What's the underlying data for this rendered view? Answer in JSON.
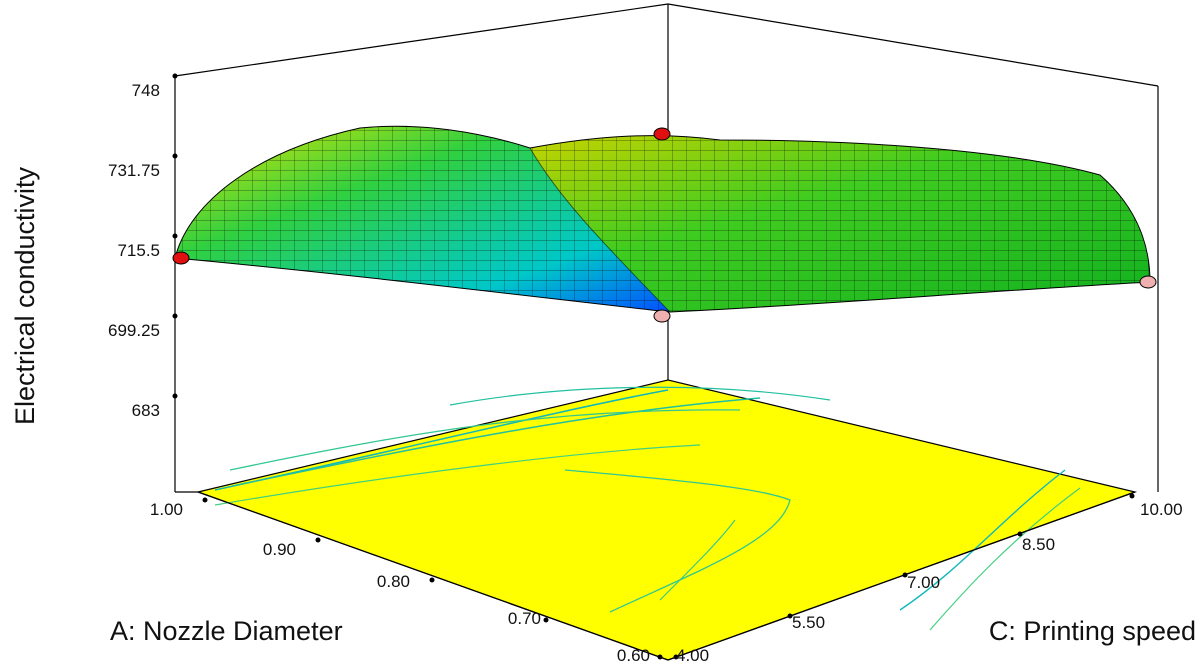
{
  "chart_data": {
    "type": "surface3d",
    "title": "",
    "zlabel": "Electrical conductivity",
    "xlabel": "A: Nozzle Diameter",
    "ylabel": "C: Printing speed",
    "x_ticks": [
      "1.00",
      "0.90",
      "0.80",
      "0.70",
      "0.60"
    ],
    "y_ticks": [
      "4.00",
      "5.50",
      "7.00",
      "8.50",
      "10.00"
    ],
    "z_ticks": [
      "748",
      "731.75",
      "715.5",
      "699.25",
      "683"
    ],
    "xlim": [
      0.6,
      1.0
    ],
    "ylim": [
      4.0,
      10.0
    ],
    "zlim": [
      683,
      748
    ],
    "surface_corners": [
      {
        "x": 1.0,
        "y": 4.0,
        "z": 715.5
      },
      {
        "x": 0.6,
        "y": 4.0,
        "z": 717
      },
      {
        "x": 0.6,
        "y": 10.0,
        "z": 713
      },
      {
        "x": 1.0,
        "y": 10.0,
        "z": 719
      }
    ],
    "design_points": [
      {
        "x": 1.0,
        "y": 4.0,
        "z": 715.5,
        "color": "#e01010"
      },
      {
        "x": 0.6,
        "y": 10.0,
        "z": 713,
        "color": "#f0b0b0"
      },
      {
        "x": 1.0,
        "y": 10.0,
        "z": 733,
        "color": "#e01010"
      },
      {
        "x": 0.6,
        "y": 4.0,
        "z": 711,
        "color": "#f0b0b0"
      }
    ],
    "surface_colormap": [
      "#0050ff",
      "#00c8c8",
      "#00d030",
      "#e8e800"
    ],
    "contour_fill": "#ffff00",
    "contour_line_colors": [
      "#00c0c0",
      "#40d080"
    ]
  }
}
